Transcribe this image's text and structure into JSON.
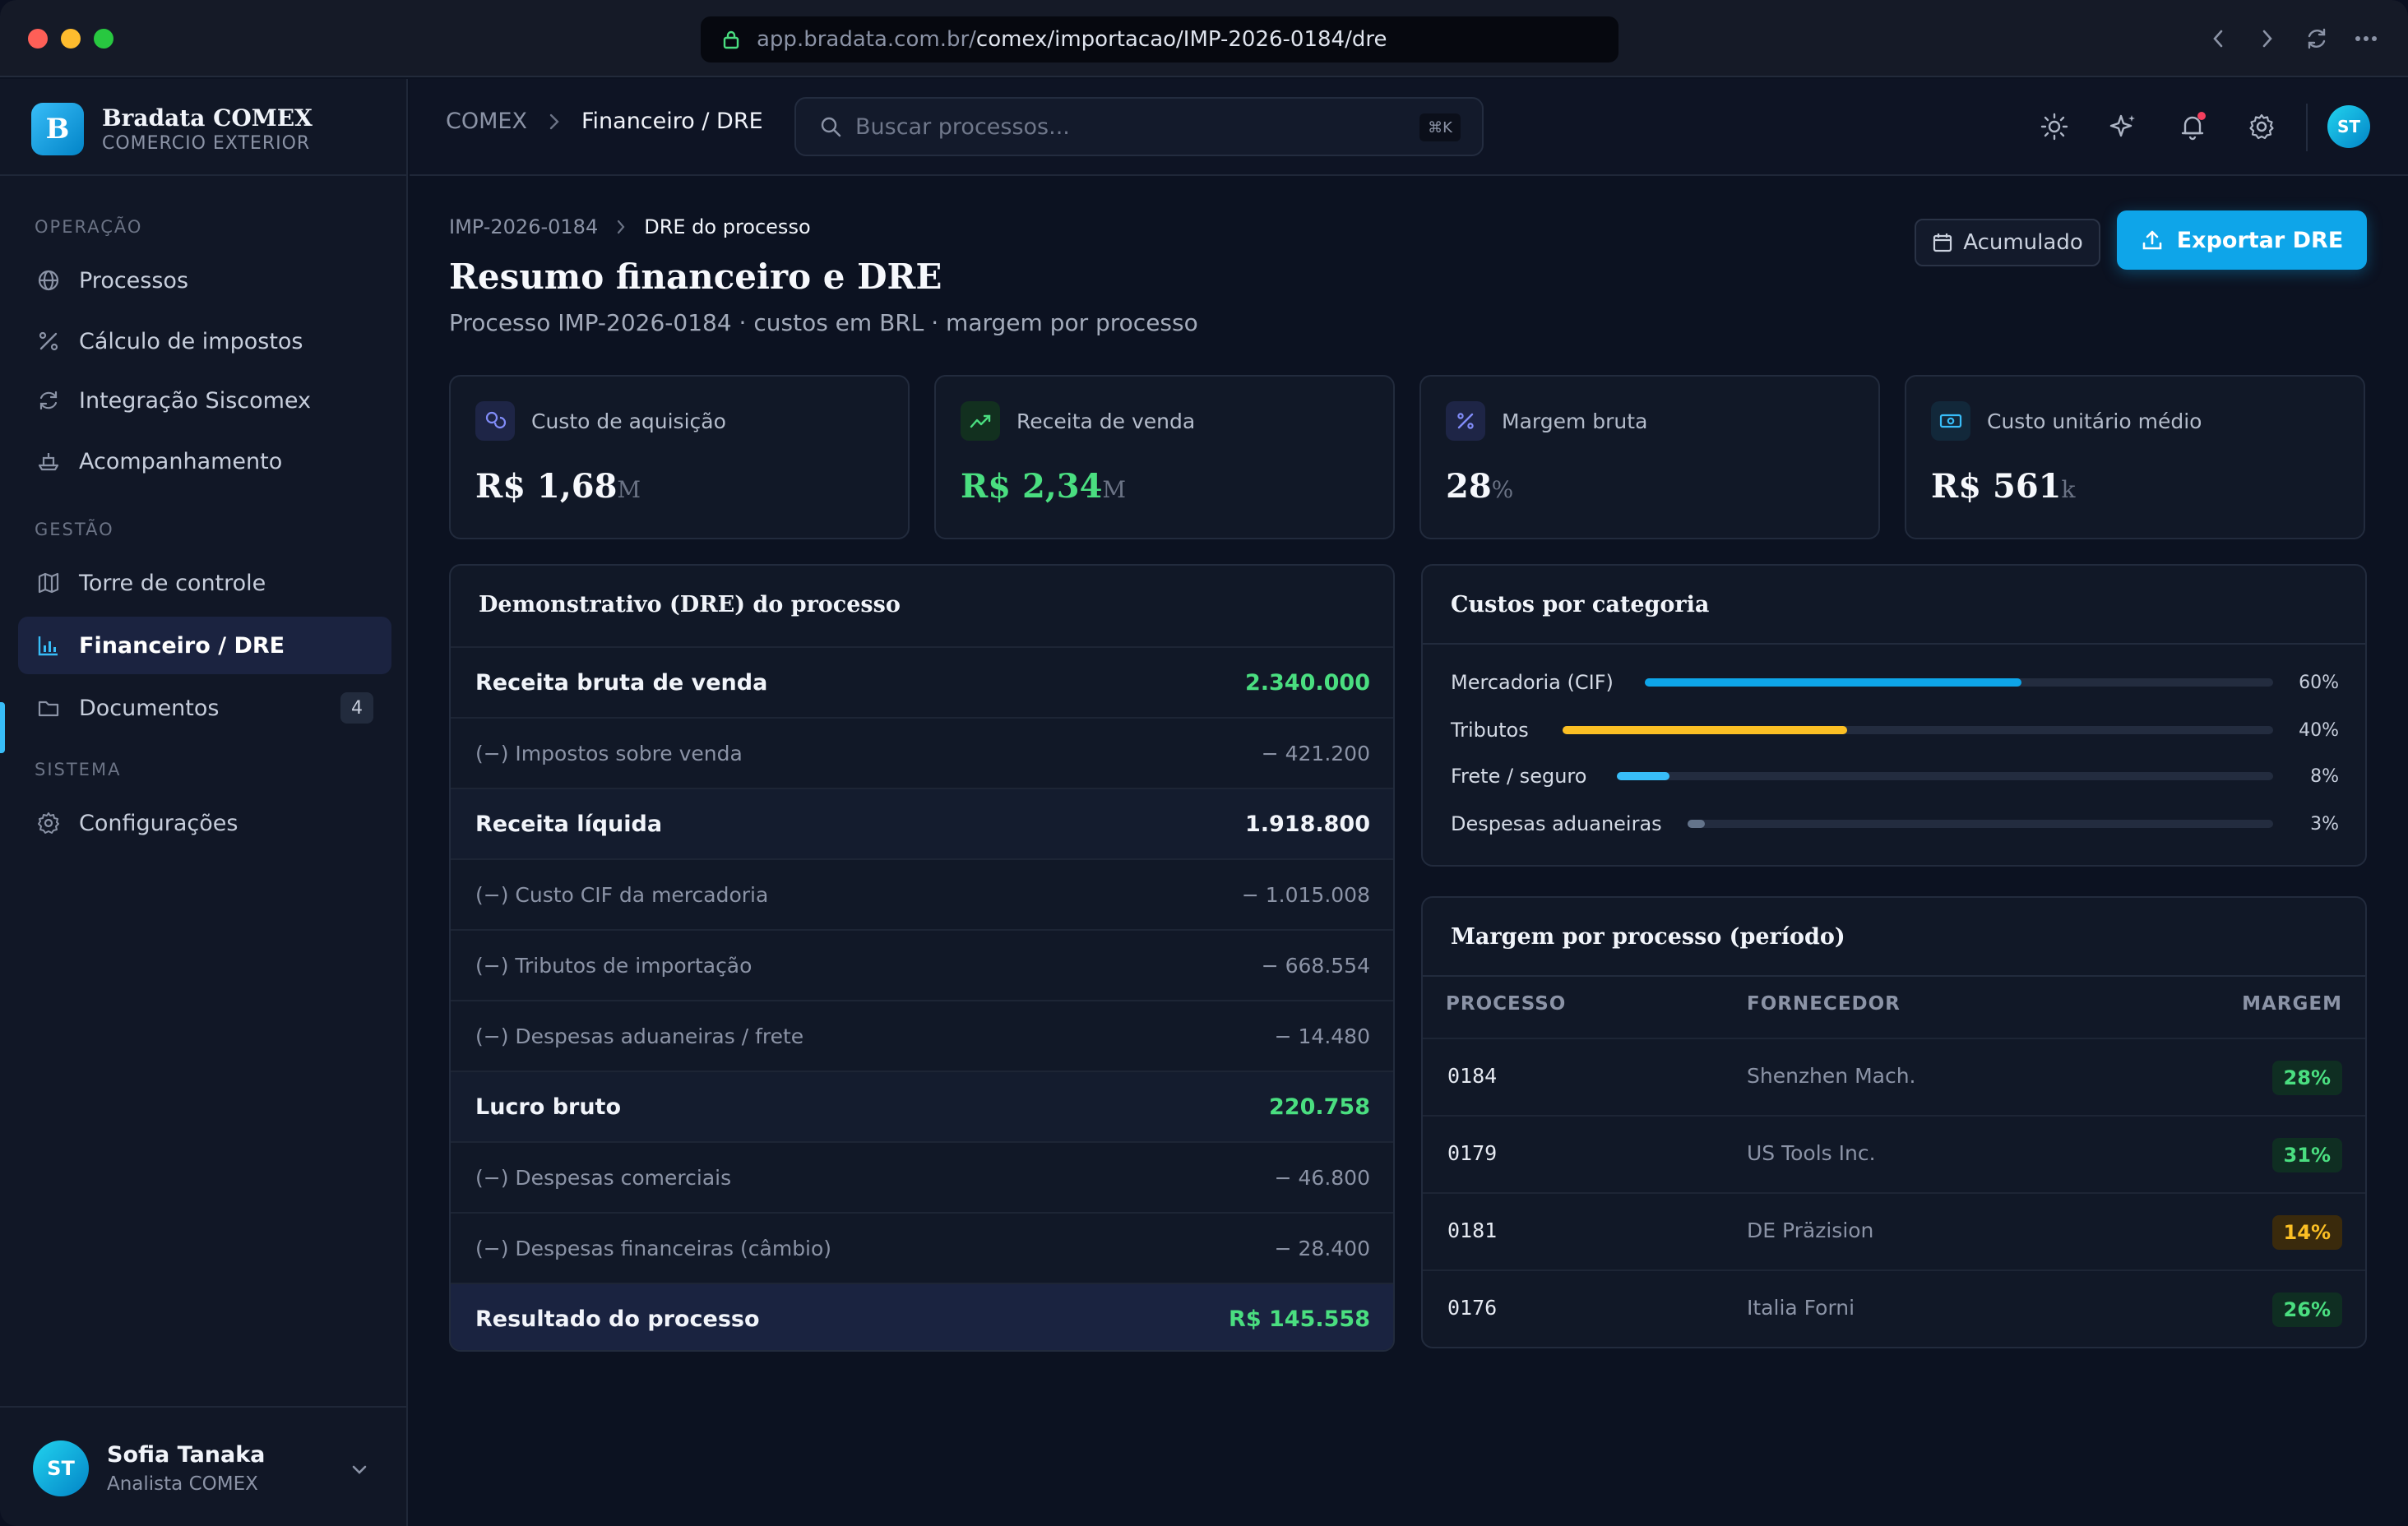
{
  "browser": {
    "url_host": "app.bradata.com.br/",
    "url_path": "comex/importacao/IMP-2026-0184/dre"
  },
  "brand": {
    "logo_letter": "B",
    "name": "Bradata COMEX",
    "subtitle": "COMERCIO EXTERIOR"
  },
  "sidebar": {
    "sections": [
      {
        "label": "OPERAÇÃO",
        "items": [
          {
            "label": "Processos",
            "icon": "globe-icon"
          },
          {
            "label": "Cálculo de impostos",
            "icon": "percent-icon"
          },
          {
            "label": "Integração Siscomex",
            "icon": "refresh-icon"
          },
          {
            "label": "Acompanhamento",
            "icon": "ship-icon"
          }
        ]
      },
      {
        "label": "GESTÃO",
        "items": [
          {
            "label": "Torre de controle",
            "icon": "map-icon"
          },
          {
            "label": "Financeiro / DRE",
            "icon": "chart-icon",
            "active": true
          },
          {
            "label": "Documentos",
            "icon": "folder-icon",
            "badge": "4"
          }
        ]
      },
      {
        "label": "SISTEMA",
        "items": [
          {
            "label": "Configurações",
            "icon": "gear-icon"
          }
        ]
      }
    ],
    "user": {
      "initials": "ST",
      "name": "Sofia Tanaka",
      "role": "Analista COMEX"
    }
  },
  "header": {
    "breadcrumb": [
      "COMEX",
      "Financeiro / DRE"
    ],
    "search_placeholder": "Buscar processos...",
    "search_shortcut": "⌘K",
    "avatar_initials": "ST"
  },
  "page": {
    "breadcrumb": [
      "IMP-2026-0184",
      "DRE do processo"
    ],
    "title": "Resumo financeiro e DRE",
    "subtitle": "Processo IMP-2026-0184 · custos em BRL · margem por processo",
    "period_button": "Acumulado",
    "export_button": "Exportar DRE"
  },
  "kpis": [
    {
      "label": "Custo de aquisição",
      "value": "R$ 1,68",
      "unit": "M",
      "icon": "coins-icon",
      "accent": "#818cf8"
    },
    {
      "label": "Receita de venda",
      "value": "R$ 2,34",
      "unit": "M",
      "icon": "trending-up-icon",
      "accent": "#4ade80"
    },
    {
      "label": "Margem bruta",
      "value": "28",
      "unit": "%",
      "icon": "percent-icon",
      "accent": "#818cf8"
    },
    {
      "label": "Custo unitário médio",
      "value": "R$ 561",
      "unit": "k",
      "icon": "banknote-icon",
      "accent": "#38bdf8"
    }
  ],
  "dre": {
    "title": "Demonstrativo (DRE) do processo",
    "rows": [
      {
        "label": "Receita bruta de venda",
        "value": "2.340.000",
        "kind": "strong-green"
      },
      {
        "label": "(−) Impostos sobre venda",
        "value": "− 421.200",
        "kind": "muted"
      },
      {
        "label": "Receita líquida",
        "value": "1.918.800",
        "kind": "strong-alt"
      },
      {
        "label": "(−) Custo CIF da mercadoria",
        "value": "− 1.015.008",
        "kind": "muted"
      },
      {
        "label": "(−) Tributos de importação",
        "value": "− 668.554",
        "kind": "muted"
      },
      {
        "label": "(−) Despesas aduaneiras / frete",
        "value": "− 14.480",
        "kind": "muted"
      },
      {
        "label": "Lucro bruto",
        "value": "220.758",
        "kind": "strong-alt-green"
      },
      {
        "label": "(−) Despesas comerciais",
        "value": "− 46.800",
        "kind": "muted"
      },
      {
        "label": "(−) Despesas financeiras (câmbio)",
        "value": "− 28.400",
        "kind": "muted"
      },
      {
        "label": "Resultado do processo",
        "value": "R$ 145.558",
        "kind": "result"
      }
    ]
  },
  "costs": {
    "title": "Custos por categoria",
    "items": [
      {
        "label": "Mercadoria (CIF)",
        "pct_label": "60%",
        "fill": 0.6,
        "color": "#0ea5e9"
      },
      {
        "label": "Tributos",
        "pct_label": "40%",
        "fill": 0.4,
        "color": "#fbbf24"
      },
      {
        "label": "Frete / seguro",
        "pct_label": "8%",
        "fill": 0.08,
        "color": "#38bdf8"
      },
      {
        "label": "Despesas aduaneiras",
        "pct_label": "3%",
        "fill": 0.03,
        "color": "#64748b"
      }
    ]
  },
  "margins": {
    "title": "Margem por processo (período)",
    "columns": [
      "PROCESSO",
      "FORNECEDOR",
      "MARGEM"
    ],
    "rows": [
      {
        "id": "0184",
        "supplier": "Shenzhen Mach.",
        "margin": "28%",
        "status": "good"
      },
      {
        "id": "0179",
        "supplier": "US Tools Inc.",
        "margin": "31%",
        "status": "good"
      },
      {
        "id": "0181",
        "supplier": "DE Präzision",
        "margin": "14%",
        "status": "warn"
      },
      {
        "id": "0176",
        "supplier": "Italia Forni",
        "margin": "26%",
        "status": "good"
      }
    ]
  }
}
